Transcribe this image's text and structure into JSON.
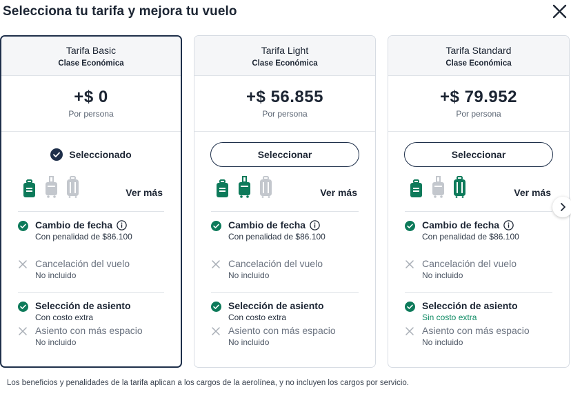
{
  "title": "Selecciona tu tarifa y mejora tu vuelo",
  "colors": {
    "primary": "#1e2f4a",
    "green": "#0d7a5a",
    "included_bag": "#0d7a5a",
    "excluded_bag": "#c3c7cd"
  },
  "fares": [
    {
      "name": "Tarifa Basic",
      "class": "Clase Económica",
      "price": "+$ 0",
      "per_person": "Por persona",
      "selected": true,
      "selected_label": "Seleccionado",
      "button_label": "Seleccionar",
      "ver_mas": "Ver más",
      "bags": {
        "personal": "included",
        "carry_on": "excluded",
        "checked": "excluded"
      },
      "change": {
        "title": "Cambio de fecha",
        "sub": "Con penalidad de $86.100"
      },
      "cancel": {
        "title": "Cancelación del vuelo",
        "sub": "No incluido"
      },
      "seat": {
        "title": "Selección de asiento",
        "sub": "Con costo extra"
      },
      "space": {
        "title": "Asiento con más espacio",
        "sub": "No incluido"
      }
    },
    {
      "name": "Tarifa Light",
      "class": "Clase Económica",
      "price": "+$ 56.855",
      "per_person": "Por persona",
      "selected": false,
      "button_label": "Seleccionar",
      "ver_mas": "Ver más",
      "bags": {
        "personal": "included",
        "carry_on": "included",
        "checked": "excluded"
      },
      "change": {
        "title": "Cambio de fecha",
        "sub": "Con penalidad de $86.100"
      },
      "cancel": {
        "title": "Cancelación del vuelo",
        "sub": "No incluido"
      },
      "seat": {
        "title": "Selección de asiento",
        "sub": "Con costo extra"
      },
      "space": {
        "title": "Asiento con más espacio",
        "sub": "No incluido"
      }
    },
    {
      "name": "Tarifa Standard",
      "class": "Clase Económica",
      "price": "+$ 79.952",
      "per_person": "Por persona",
      "selected": false,
      "button_label": "Seleccionar",
      "ver_mas": "Ver más",
      "bags": {
        "personal": "included",
        "carry_on": "excluded",
        "checked": "included"
      },
      "change": {
        "title": "Cambio de fecha",
        "sub": "Con penalidad de $86.100"
      },
      "cancel": {
        "title": "Cancelación del vuelo",
        "sub": "No incluido"
      },
      "seat": {
        "title": "Selección de asiento",
        "sub": "Sin costo extra"
      },
      "space": {
        "title": "Asiento con más espacio",
        "sub": "No incluido"
      }
    }
  ],
  "footer_note": "Los beneficios y penalidades de la tarifa aplican a los cargos de la aerolínea, y no incluyen los cargos por servicio."
}
